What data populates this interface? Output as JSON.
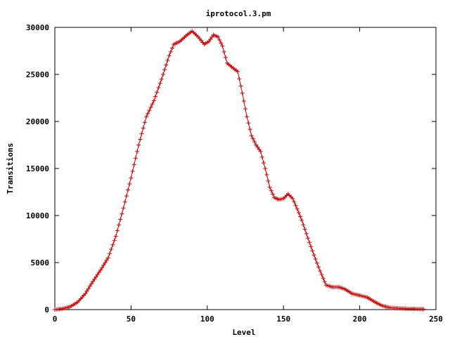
{
  "chart_data": {
    "type": "line",
    "title": "iprotocol.3.pm",
    "xlabel": "Level",
    "ylabel": "Transitions",
    "xlim": [
      0,
      250
    ],
    "ylim": [
      0,
      30000
    ],
    "xticks": [
      0,
      50,
      100,
      150,
      200,
      250
    ],
    "yticks": [
      0,
      5000,
      10000,
      15000,
      20000,
      25000,
      30000
    ],
    "grid": false,
    "legend": "none",
    "marker": "plus",
    "series": [
      {
        "color": "#cc0000",
        "x": [
          0,
          5,
          10,
          15,
          20,
          25,
          30,
          35,
          40,
          45,
          50,
          55,
          60,
          65,
          70,
          75,
          78,
          82,
          86,
          90,
          94,
          98,
          101,
          104,
          107,
          110,
          113,
          116,
          120,
          123,
          126,
          129,
          132,
          135,
          138,
          141,
          144,
          147,
          150,
          153,
          156,
          159,
          162,
          166,
          170,
          174,
          178,
          182,
          186,
          190,
          195,
          200,
          205,
          210,
          215,
          220,
          225,
          230,
          235,
          240,
          242
        ],
        "y": [
          0,
          100,
          300,
          800,
          1700,
          3000,
          4200,
          5500,
          7800,
          10800,
          14000,
          17500,
          20500,
          22200,
          24500,
          27000,
          28200,
          28500,
          29100,
          29600,
          29000,
          28200,
          28500,
          29200,
          29000,
          28000,
          26200,
          25800,
          25300,
          23000,
          20500,
          18500,
          17500,
          16800,
          15000,
          13000,
          11900,
          11700,
          11800,
          12300,
          11800,
          10700,
          9500,
          7600,
          5800,
          4100,
          2600,
          2400,
          2400,
          2200,
          1700,
          1500,
          1300,
          800,
          400,
          200,
          150,
          100,
          80,
          60,
          50
        ]
      }
    ]
  }
}
